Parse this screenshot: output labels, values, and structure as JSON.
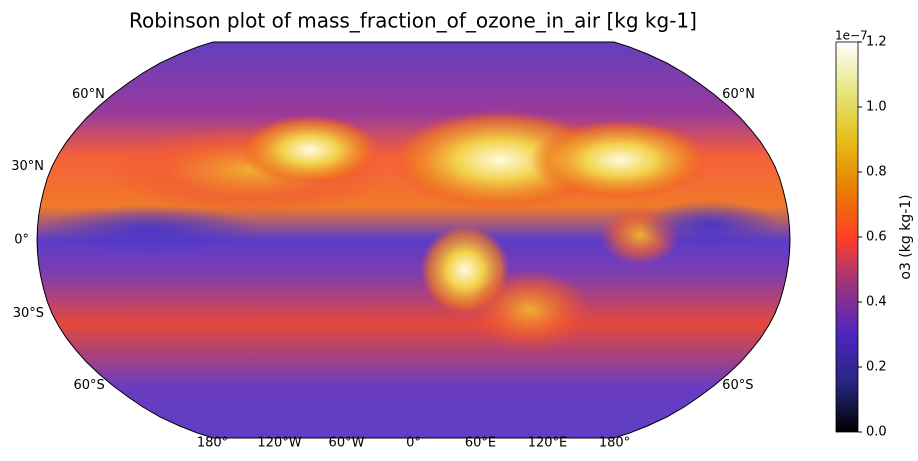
{
  "title": "Robinson plot of mass_fraction_of_ozone_in_air [kg kg-1]",
  "map": {
    "lat_labels": [
      "60°N",
      "30°N",
      "0°",
      "30°S",
      "60°S"
    ],
    "lon_labels": [
      "180°",
      "120°W",
      "60°W",
      "0°",
      "60°E",
      "120°E",
      "180°"
    ]
  },
  "colorbar": {
    "label": "o3 (kg kg-1)",
    "offset": "1e−7",
    "lim": [
      0,
      1.2
    ],
    "ticks": [
      {
        "value": 0,
        "label": "0.0"
      },
      0.2,
      0.4,
      0.6,
      0.8,
      {
        "value": 1,
        "label": "1.0"
      },
      1.2
    ]
  }
}
